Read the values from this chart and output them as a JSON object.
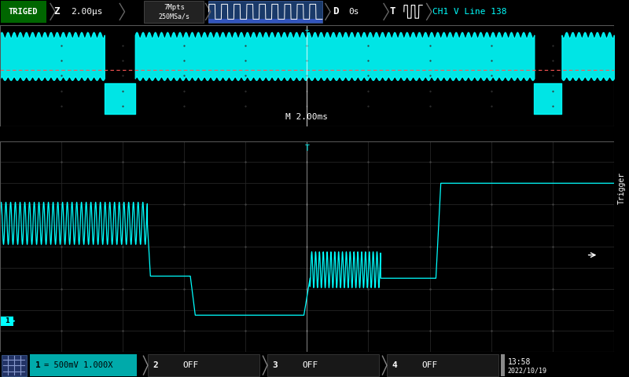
{
  "bg_color": "#000000",
  "panel_bg": "#111111",
  "grid_color": "#2a2a2a",
  "dot_color": "#444444",
  "cyan_color": "#00FFFF",
  "red_dashed_color": "#FF4444",
  "white_color": "#FFFFFF",
  "top_bar_bg": "#1a1a1a",
  "triged_bg": "#006600",
  "trigger_sidebar_bg": "#1a2a5a",
  "bottom_bar_bg": "#111111",
  "ch1_highlight_bg": "#00AAAA",
  "M_label": "M 2.00ms",
  "ch1_label": "1",
  "ch1_setting": "= 500mV 1.000X",
  "ch2_label": "2",
  "ch3_label": "3",
  "ch4_label": "4",
  "off_label": "OFF",
  "time_line1": "13:58",
  "time_line2": "2022/10/19",
  "trigger_text": "Trigger"
}
